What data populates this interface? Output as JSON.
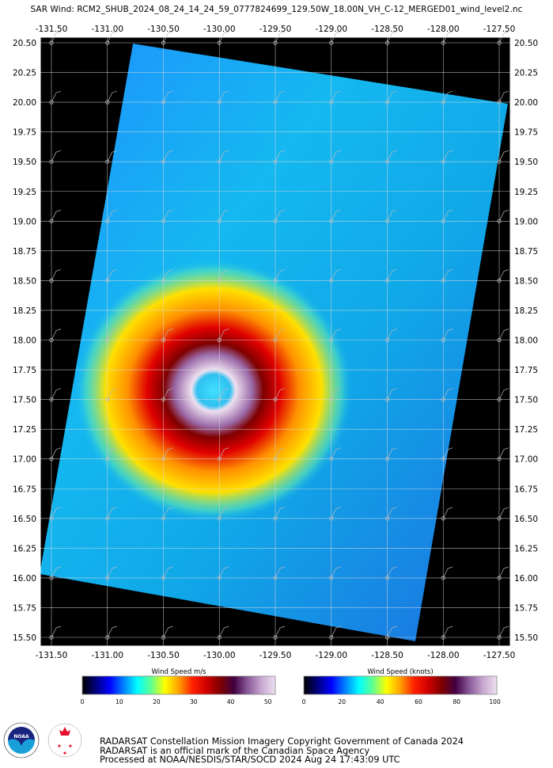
{
  "title": "SAR Wind: RCM2_SHUB_2024_08_24_14_24_59_0777824699_129.50W_18.00N_VH_C-12_MERGED01_wind_level2.nc",
  "map": {
    "lon_ticks": [
      "-131.50",
      "-131.00",
      "-130.50",
      "-130.00",
      "-129.50",
      "-129.00",
      "-128.50",
      "-128.00",
      "-127.50"
    ],
    "lat_ticks": [
      "20.50",
      "20.25",
      "20.00",
      "19.75",
      "19.50",
      "19.25",
      "19.00",
      "18.75",
      "18.50",
      "18.25",
      "18.00",
      "17.75",
      "17.50",
      "17.25",
      "17.00",
      "16.75",
      "16.50",
      "16.25",
      "16.00",
      "15.75",
      "15.50"
    ],
    "background_color": "#000000",
    "grid_color": "#ffffff",
    "storm_center": {
      "lon": -130.0,
      "lat": 17.55
    }
  },
  "colorbars": [
    {
      "title": "Wind Speed m/s",
      "ticks": [
        "0",
        "10",
        "20",
        "30",
        "40",
        "50"
      ],
      "max": 52
    },
    {
      "title": "Wind Speed (knots)",
      "ticks": [
        "0",
        "20",
        "40",
        "60",
        "80",
        "100"
      ],
      "max": 101
    }
  ],
  "colormap": [
    "#000000",
    "#00007f",
    "#0000ff",
    "#0080ff",
    "#00ffff",
    "#60ff90",
    "#ffff00",
    "#ffa000",
    "#ff2000",
    "#d00000",
    "#7f0000",
    "#400040",
    "#8a5a9a",
    "#c8a8d0",
    "#eee0f0"
  ],
  "logos": {
    "noaa": "NOAA",
    "csa_en": "CANADIAN SPACE AGENCY",
    "csa_fr": "AGENCE SPATIALE CANADIENNE"
  },
  "footer": [
    "RADARSAT Constellation Mission Imagery Copyright Government of Canada 2024",
    "RADARSAT is an official mark of the Canadian Space Agency",
    "Processed at NOAA/NESDIS/STAR/SOCD 2024 Aug 24 17:43:09 UTC"
  ]
}
